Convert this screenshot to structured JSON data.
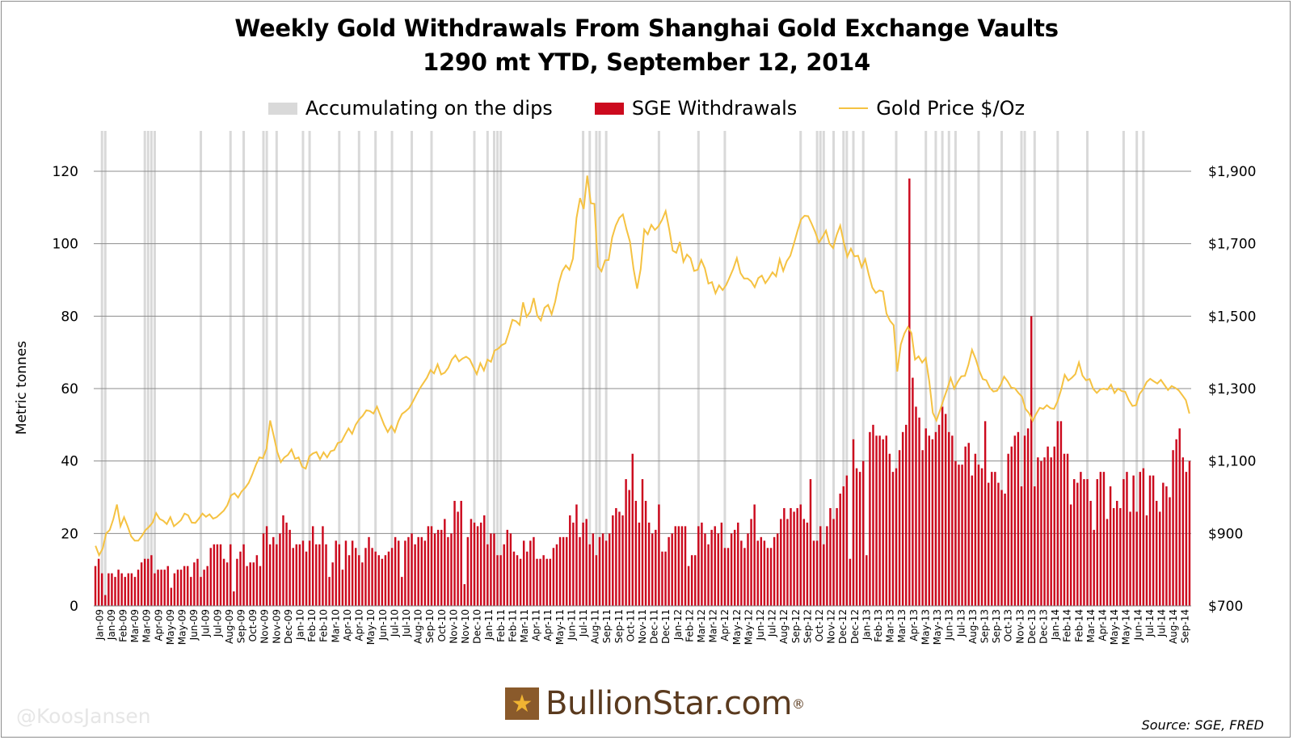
{
  "title_line1": "Weekly Gold Withdrawals From Shanghai Gold Exchange Vaults",
  "title_line2": "1290 mt YTD, September 12, 2014",
  "legend": {
    "grey": "Accumulating on the dips",
    "red": "SGE Withdrawals",
    "line": "Gold Price $/Oz"
  },
  "ylabel": "Metric tonnes",
  "logo_text": "BullionStar.com",
  "logo_reg": "®",
  "source": "Source: SGE, FRED",
  "watermark": "@KoosJansen",
  "colors": {
    "bars": "#cc0a1e",
    "line": "#f5c242",
    "dips": "#d9d9d9",
    "grid": "#8c8c8c"
  },
  "chart_data": {
    "type": "bar",
    "y_left": {
      "label": "Metric tonnes",
      "min": 0,
      "max": 120,
      "ticks": [
        0,
        20,
        40,
        60,
        80,
        100,
        120
      ]
    },
    "y_right": {
      "min": 700,
      "max": 1900,
      "tick_labels": [
        "$700",
        "$900",
        "$1,100",
        "$1,300",
        "$1,500",
        "$1,700",
        "$1,900"
      ]
    },
    "x_ticks": [
      "Jan-09",
      "Jan-09",
      "Feb-09",
      "Mar-09",
      "Mar-09",
      "Apr-09",
      "May-09",
      "May-09",
      "Jun-09",
      "Jul-09",
      "Jul-09",
      "Aug-09",
      "Sep-09",
      "Oct-09",
      "Nov-09",
      "Nov-09",
      "Dec-09",
      "Jan-10",
      "Feb-10",
      "Feb-10",
      "Mar-10",
      "Apr-10",
      "Apr-10",
      "May-10",
      "Jun-10",
      "Jul-10",
      "Jul-10",
      "Aug-10",
      "Sep-10",
      "Oct-10",
      "Nov-10",
      "Nov-10",
      "Dec-10",
      "Jan-11",
      "Feb-11",
      "Feb-11",
      "Mar-11",
      "Apr-11",
      "Apr-11",
      "May-11",
      "Jun-11",
      "Jul-11",
      "Aug-11",
      "Sep-11",
      "Sep-11",
      "Oct-11",
      "Nov-11",
      "Dec-11",
      "Dec-11",
      "Jan-12",
      "Feb-12",
      "Mar-12",
      "Mar-12",
      "Apr-12",
      "May-12",
      "May-12",
      "Jun-12",
      "Jul-12",
      "Aug-12",
      "Sep-12",
      "Sep-12",
      "Oct-12",
      "Nov-12",
      "Dec-12",
      "Dec-12",
      "Jan-13",
      "Feb-13",
      "Mar-13",
      "Mar-13",
      "Apr-13",
      "May-13",
      "May-13",
      "Jun-13",
      "Jul-13",
      "Aug-13",
      "Sep-13",
      "Sep-13",
      "Oct-13",
      "Nov-13",
      "Dec-13",
      "Dec-13",
      "Jan-14",
      "Feb-14",
      "Feb-14",
      "Mar-14",
      "Apr-14",
      "May-14",
      "May-14",
      "Jun-14",
      "Jul-14",
      "Jul-14",
      "Aug-14",
      "Sep-14"
    ],
    "series": [
      {
        "name": "SGE Withdrawals",
        "unit": "metric tonnes",
        "start_week": "2009-01-02",
        "values": [
          11,
          13,
          9,
          3,
          9,
          9,
          8,
          10,
          9,
          8,
          9,
          9,
          8,
          10,
          12,
          13,
          13,
          14,
          9,
          10,
          10,
          10,
          11,
          5,
          9,
          10,
          10,
          11,
          11,
          8,
          12,
          13,
          8,
          10,
          11,
          16,
          17,
          17,
          17,
          13,
          12,
          17,
          4,
          13,
          15,
          17,
          11,
          12,
          12,
          14,
          11,
          20,
          22,
          17,
          19,
          17,
          20,
          25,
          23,
          21,
          16,
          17,
          17,
          18,
          15,
          18,
          22,
          17,
          17,
          22,
          17,
          8,
          12,
          18,
          17,
          10,
          18,
          14,
          18,
          16,
          14,
          12,
          16,
          19,
          16,
          15,
          14,
          13,
          14,
          15,
          16,
          19,
          18,
          8,
          18,
          19,
          20,
          17,
          19,
          19,
          18,
          22,
          22,
          20,
          21,
          21,
          24,
          19,
          20,
          29,
          26,
          29,
          6,
          19,
          24,
          23,
          22,
          23,
          25,
          17,
          20,
          20,
          14,
          14,
          17,
          21,
          20,
          15,
          14,
          13,
          18,
          15,
          18,
          19,
          13,
          13,
          14,
          13,
          13,
          16,
          17,
          19,
          19,
          19,
          25,
          23,
          28,
          19,
          23,
          24,
          17,
          20,
          14,
          19,
          20,
          18,
          20,
          25,
          27,
          26,
          25,
          35,
          32,
          42,
          29,
          23,
          35,
          29,
          23,
          20,
          21,
          28,
          15,
          15,
          19,
          20,
          22,
          22,
          22,
          22,
          11,
          14,
          14,
          22,
          23,
          20,
          17,
          21,
          22,
          20,
          23,
          16,
          16,
          20,
          21,
          23,
          18,
          16,
          20,
          24,
          28,
          18,
          19,
          18,
          16,
          16,
          19,
          20,
          24,
          27,
          24,
          27,
          26,
          27,
          28,
          24,
          23,
          35,
          18,
          18,
          22,
          17,
          22,
          27,
          24,
          27,
          31,
          33,
          36,
          13,
          46,
          38,
          37,
          40,
          14,
          48,
          50,
          47,
          47,
          46,
          47,
          42,
          37,
          38,
          43,
          48,
          50,
          118,
          63,
          55,
          52,
          43,
          49,
          47,
          46,
          48,
          50,
          55,
          53,
          48,
          47,
          40,
          39,
          39,
          44,
          45,
          36,
          42,
          39,
          38,
          51,
          34,
          37,
          37,
          34,
          32,
          31,
          42,
          44,
          47,
          48,
          33,
          47,
          49,
          80,
          33,
          41,
          40,
          41,
          44,
          41,
          44,
          51,
          51,
          42,
          42,
          28,
          35,
          34,
          37,
          35,
          35,
          29,
          21,
          35,
          37,
          37,
          24,
          33,
          27,
          29,
          27,
          35,
          37,
          26,
          36,
          26,
          37,
          38,
          25,
          36,
          36,
          29,
          26,
          34,
          33,
          30,
          43,
          46,
          49,
          41,
          37,
          40
        ]
      },
      {
        "name": "Gold Price $/Oz",
        "unit": "USD/oz",
        "weekly_samples": [
          866,
          840,
          858,
          900,
          910,
          940,
          980,
          920,
          945,
          920,
          892,
          880,
          880,
          893,
          909,
          918,
          930,
          956,
          940,
          935,
          926,
          945,
          920,
          928,
          937,
          955,
          950,
          930,
          929,
          941,
          955,
          946,
          953,
          941,
          945,
          954,
          963,
          978,
          1005,
          1011,
          999,
          1016,
          1026,
          1040,
          1063,
          1089,
          1110,
          1108,
          1134,
          1212,
          1170,
          1125,
          1097,
          1110,
          1117,
          1132,
          1106,
          1110,
          1084,
          1079,
          1113,
          1121,
          1125,
          1105,
          1124,
          1110,
          1127,
          1130,
          1150,
          1153,
          1172,
          1190,
          1175,
          1200,
          1215,
          1225,
          1240,
          1238,
          1231,
          1250,
          1225,
          1200,
          1180,
          1197,
          1180,
          1210,
          1230,
          1237,
          1246,
          1263,
          1282,
          1300,
          1315,
          1330,
          1351,
          1342,
          1367,
          1339,
          1344,
          1357,
          1380,
          1392,
          1375,
          1383,
          1388,
          1381,
          1360,
          1340,
          1370,
          1350,
          1380,
          1374,
          1405,
          1410,
          1420,
          1425,
          1455,
          1490,
          1486,
          1476,
          1538,
          1498,
          1512,
          1550,
          1501,
          1488,
          1523,
          1531,
          1505,
          1540,
          1590,
          1624,
          1640,
          1628,
          1659,
          1771,
          1826,
          1796,
          1888,
          1812,
          1810,
          1637,
          1624,
          1654,
          1655,
          1717,
          1750,
          1771,
          1781,
          1740,
          1705,
          1630,
          1576,
          1630,
          1739,
          1726,
          1752,
          1738,
          1748,
          1766,
          1790,
          1740,
          1681,
          1675,
          1705,
          1650,
          1670,
          1660,
          1625,
          1628,
          1655,
          1632,
          1590,
          1594,
          1563,
          1585,
          1572,
          1586,
          1608,
          1631,
          1660,
          1619,
          1604,
          1604,
          1596,
          1580,
          1605,
          1612,
          1591,
          1605,
          1621,
          1610,
          1657,
          1625,
          1652,
          1667,
          1700,
          1735,
          1767,
          1777,
          1776,
          1755,
          1732,
          1703,
          1718,
          1736,
          1700,
          1688,
          1724,
          1750,
          1704,
          1664,
          1686,
          1665,
          1667,
          1635,
          1657,
          1615,
          1579,
          1564,
          1571,
          1568,
          1507,
          1487,
          1475,
          1347,
          1422,
          1452,
          1470,
          1453,
          1380,
          1389,
          1372,
          1384,
          1320,
          1233,
          1212,
          1240,
          1270,
          1298,
          1329,
          1300,
          1319,
          1334,
          1335,
          1366,
          1407,
          1382,
          1350,
          1326,
          1323,
          1302,
          1292,
          1294,
          1310,
          1333,
          1320,
          1303,
          1301,
          1288,
          1278,
          1244,
          1232,
          1211,
          1230,
          1247,
          1244,
          1254,
          1246,
          1244,
          1265,
          1297,
          1338,
          1322,
          1330,
          1340,
          1372,
          1336,
          1323,
          1326,
          1299,
          1288,
          1298,
          1300,
          1297,
          1311,
          1288,
          1300,
          1293,
          1291,
          1268,
          1252,
          1254,
          1285,
          1298,
          1318,
          1327,
          1320,
          1314,
          1324,
          1310,
          1296,
          1307,
          1302,
          1295,
          1282,
          1268,
          1231
        ]
      }
    ],
    "dip_weeks_index": [
      1,
      2,
      3,
      4,
      5,
      6,
      7,
      8,
      9,
      10,
      11,
      12,
      13,
      14,
      15,
      16,
      17,
      18,
      19,
      20,
      21,
      22,
      23,
      24,
      25,
      26,
      27,
      28,
      29,
      30,
      31,
      32,
      33,
      34,
      35,
      36,
      37,
      38,
      39,
      40,
      41,
      42,
      43,
      44,
      45,
      46,
      47,
      48,
      49,
      50,
      51,
      52,
      53,
      54,
      55,
      56,
      57,
      58,
      59,
      60,
      61,
      62,
      63,
      64,
      65,
      66,
      67,
      68,
      69,
      70,
      71,
      72,
      73,
      74,
      75,
      76,
      77,
      78,
      79,
      80,
      81,
      82,
      83,
      84,
      85,
      86,
      87,
      88,
      89,
      90
    ]
  }
}
